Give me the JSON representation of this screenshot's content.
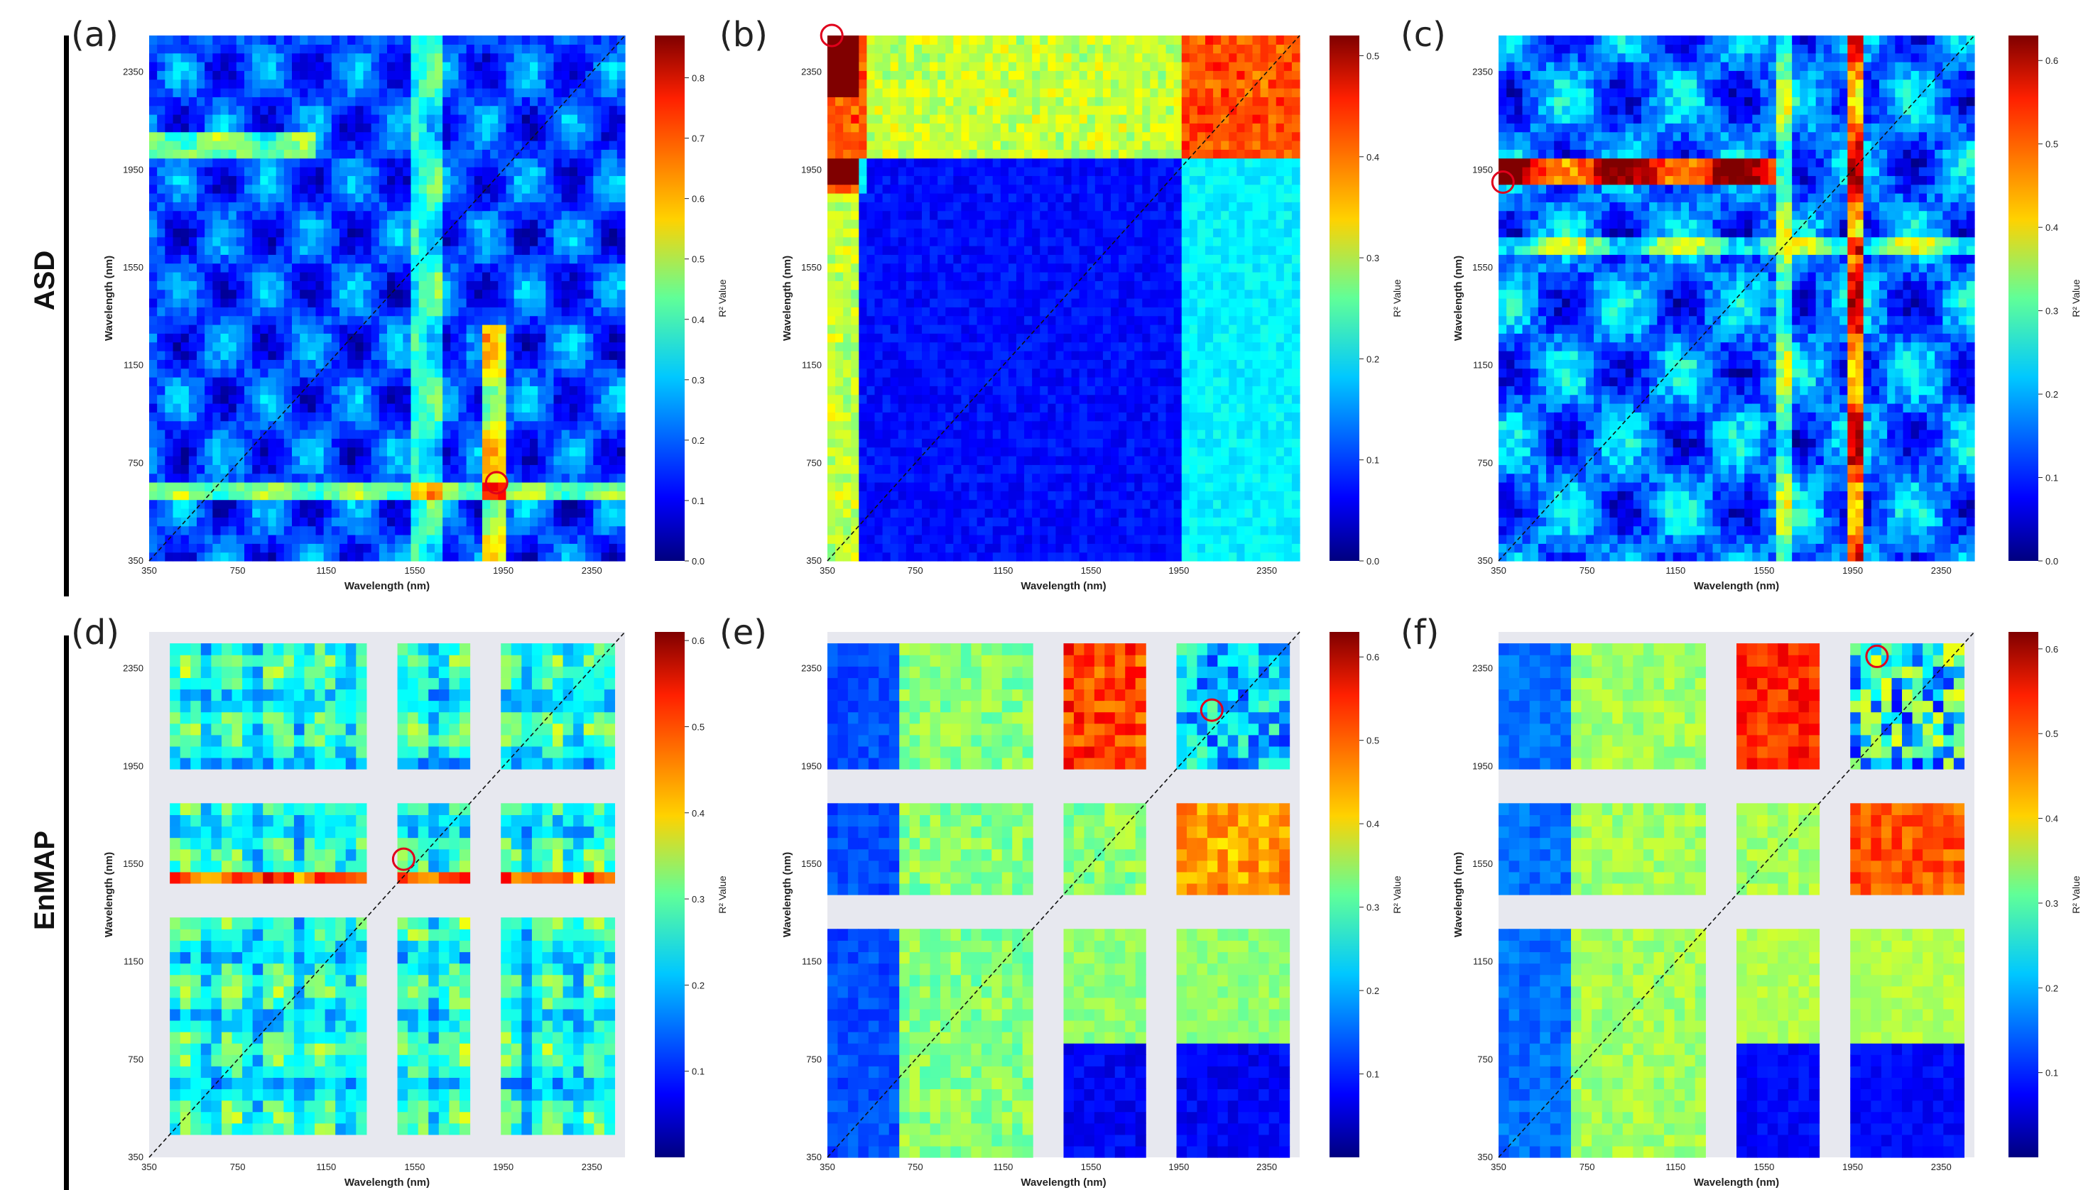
{
  "row_labels": [
    "ASD",
    "EnMAP"
  ],
  "chart_data": [
    {
      "type": "heatmap",
      "panel": "(a)",
      "row": "ASD",
      "xlabel": "Wavelength (nm)",
      "ylabel": "Wavelength (nm)",
      "xticks": [
        "350",
        "750",
        "1150",
        "1550",
        "1950",
        "2350"
      ],
      "yticks": [
        "350",
        "750",
        "1150",
        "1550",
        "1950",
        "2350"
      ],
      "xlim": [
        350,
        2500
      ],
      "ylim": [
        350,
        2500
      ],
      "colorbar_label": "R² Value",
      "colorbar_ticks": [
        "0.0",
        "0.1",
        "0.2",
        "0.3",
        "0.4",
        "0.5",
        "0.6",
        "0.7",
        "0.8"
      ],
      "colorbar_max": 0.87,
      "marker": {
        "x": 1920,
        "y": 670
      }
    },
    {
      "type": "heatmap",
      "panel": "(b)",
      "row": "ASD",
      "xlabel": "Wavelength (nm)",
      "ylabel": "Wavelength (nm)",
      "xticks": [
        "350",
        "750",
        "1150",
        "1550",
        "1950",
        "2350"
      ],
      "yticks": [
        "350",
        "750",
        "1150",
        "1550",
        "1950",
        "2350"
      ],
      "xlim": [
        350,
        2500
      ],
      "ylim": [
        350,
        2500
      ],
      "colorbar_label": "R² Value",
      "colorbar_ticks": [
        "0.0",
        "0.1",
        "0.2",
        "0.3",
        "0.4",
        "0.5"
      ],
      "colorbar_max": 0.52,
      "marker": {
        "x": 370,
        "y": 2500
      }
    },
    {
      "type": "heatmap",
      "panel": "(c)",
      "row": "ASD",
      "xlabel": "Wavelength (nm)",
      "ylabel": "Wavelength (nm)",
      "xticks": [
        "350",
        "750",
        "1150",
        "1550",
        "1950",
        "2350"
      ],
      "yticks": [
        "350",
        "750",
        "1150",
        "1550",
        "1950",
        "2350"
      ],
      "xlim": [
        350,
        2500
      ],
      "ylim": [
        350,
        2500
      ],
      "colorbar_label": "R² Value",
      "colorbar_ticks": [
        "0.0",
        "0.1",
        "0.2",
        "0.3",
        "0.4",
        "0.5",
        "0.6"
      ],
      "colorbar_max": 0.63,
      "marker": {
        "x": 370,
        "y": 1900
      }
    },
    {
      "type": "heatmap",
      "panel": "(d)",
      "row": "EnMAP",
      "xlabel": "Wavelength (nm)",
      "ylabel": "Wavelength (nm)",
      "xticks": [
        "350",
        "750",
        "1150",
        "1550",
        "1950",
        "2350"
      ],
      "yticks": [
        "350",
        "750",
        "1150",
        "1550",
        "1950",
        "2350"
      ],
      "xlim": [
        350,
        2500
      ],
      "ylim": [
        350,
        2500
      ],
      "colorbar_label": "R² Value",
      "colorbar_ticks": [
        "0.1",
        "0.2",
        "0.3",
        "0.4",
        "0.5",
        "0.6"
      ],
      "colorbar_max": 0.61,
      "marker": {
        "x": 1500,
        "y": 1570
      }
    },
    {
      "type": "heatmap",
      "panel": "(e)",
      "row": "EnMAP",
      "xlabel": "Wavelength (nm)",
      "ylabel": "Wavelength (nm)",
      "xticks": [
        "350",
        "750",
        "1150",
        "1550",
        "1950",
        "2350"
      ],
      "yticks": [
        "350",
        "750",
        "1150",
        "1550",
        "1950",
        "2350"
      ],
      "xlim": [
        350,
        2500
      ],
      "ylim": [
        350,
        2500
      ],
      "colorbar_label": "R² Value",
      "colorbar_ticks": [
        "0.1",
        "0.2",
        "0.3",
        "0.4",
        "0.5",
        "0.6"
      ],
      "colorbar_max": 0.63,
      "marker": {
        "x": 2100,
        "y": 2180
      }
    },
    {
      "type": "heatmap",
      "panel": "(f)",
      "row": "EnMAP",
      "xlabel": "Wavelength (nm)",
      "ylabel": "Wavelength (nm)",
      "xticks": [
        "350",
        "750",
        "1150",
        "1550",
        "1950",
        "2350"
      ],
      "yticks": [
        "350",
        "750",
        "1150",
        "1550",
        "1950",
        "2350"
      ],
      "xlim": [
        350,
        2500
      ],
      "ylim": [
        350,
        2500
      ],
      "colorbar_label": "R² Value",
      "colorbar_ticks": [
        "0.1",
        "0.2",
        "0.3",
        "0.4",
        "0.5",
        "0.6"
      ],
      "colorbar_max": 0.62,
      "marker": {
        "x": 2060,
        "y": 2400
      }
    }
  ]
}
